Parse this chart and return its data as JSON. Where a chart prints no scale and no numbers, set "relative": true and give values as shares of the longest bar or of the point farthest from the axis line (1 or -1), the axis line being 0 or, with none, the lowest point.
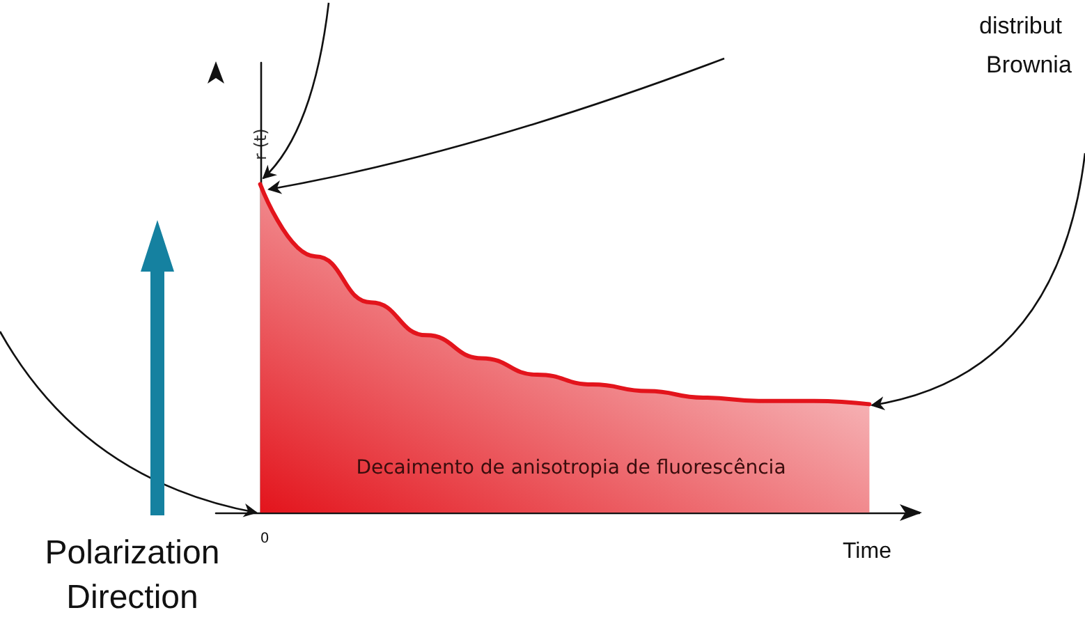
{
  "chart_data": {
    "type": "area",
    "relative": true,
    "xlabel": "Time",
    "ylabel": "r (t)",
    "color": "#e3141c",
    "categories": [
      null,
      null,
      null,
      null,
      null,
      null,
      null,
      null,
      null,
      null,
      null,
      null
    ],
    "values": [
      1.0,
      0.78,
      0.64,
      0.54,
      0.47,
      0.42,
      0.39,
      0.37,
      0.35,
      0.34,
      0.34,
      0.33
    ],
    "annotations": [
      "0",
      "Decaimento de anisotropia de fluorescência",
      "Polarization Direction",
      "distribut",
      "Brownia"
    ],
    "grid": false,
    "marker": "none",
    "line_style": "solid"
  }
}
